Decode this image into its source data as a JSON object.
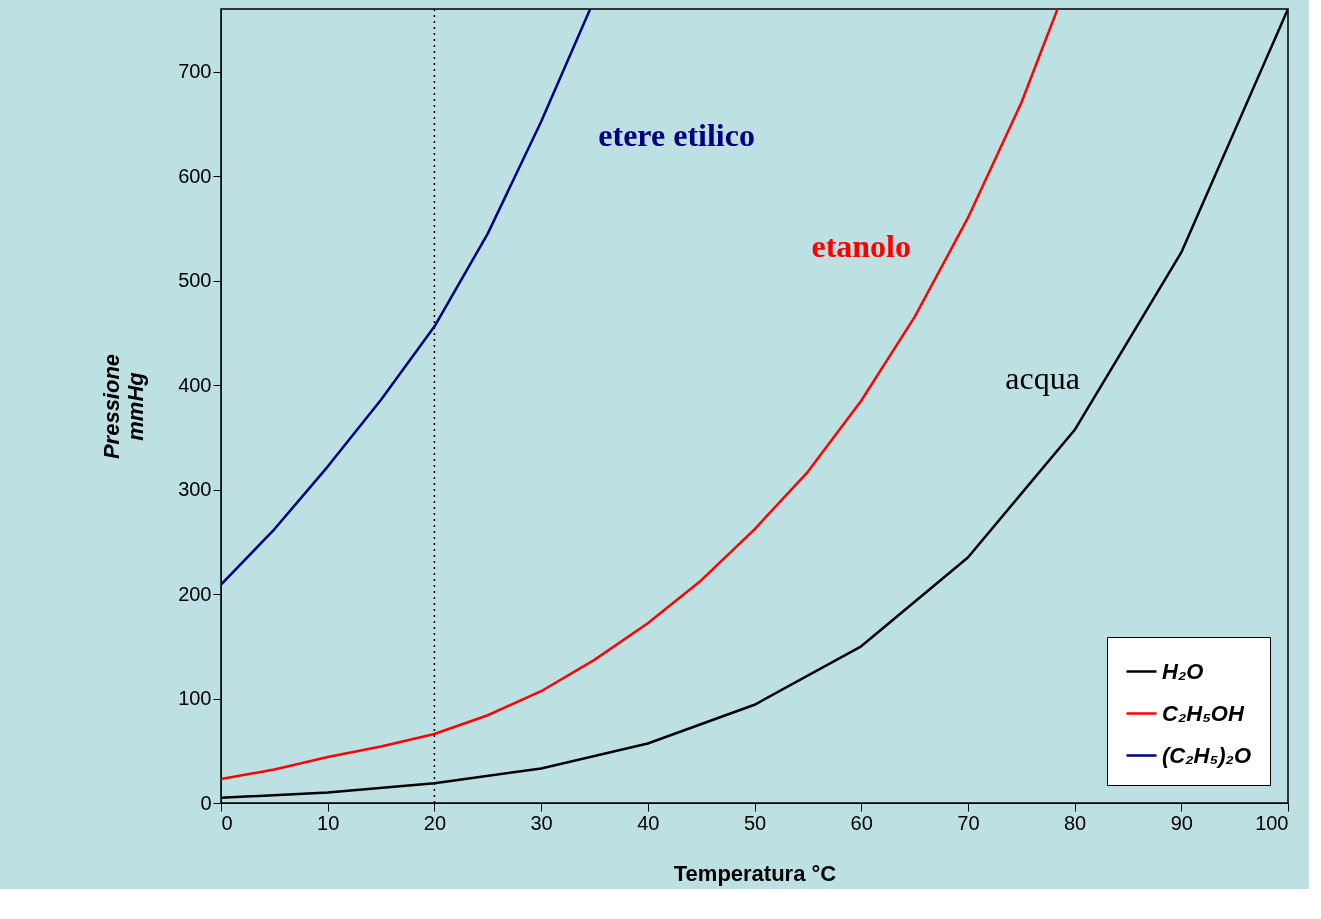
{
  "chart_data": {
    "type": "line",
    "xlabel": "Temperatura °C",
    "ylabel": "Pressione mmHg",
    "xlim": [
      0,
      100
    ],
    "xticks": [
      0,
      10,
      20,
      30,
      40,
      50,
      60,
      70,
      80,
      90,
      100
    ],
    "ylim": [
      0,
      760
    ],
    "yticks": [
      0,
      100,
      200,
      300,
      400,
      500,
      600,
      700
    ],
    "grid": false,
    "legend": "bottom right",
    "marker": "none",
    "line_style": "solid",
    "series": [
      {
        "name": "H₂O",
        "color": "#000000",
        "x": [
          0,
          10,
          20,
          30,
          40,
          50,
          60,
          70,
          80,
          90,
          100
        ],
        "values": [
          5,
          10,
          19,
          33,
          57,
          94,
          150,
          235,
          357,
          527,
          760
        ]
      },
      {
        "name": "C₂H₅OH",
        "color": "#ff0000",
        "x": [
          0,
          5,
          10,
          15,
          20,
          25,
          30,
          35,
          40,
          45,
          50,
          55,
          60,
          65,
          70,
          75,
          78.4
        ],
        "values": [
          23,
          32,
          44,
          54,
          66,
          84,
          107,
          137,
          172,
          213,
          262,
          317,
          385,
          465,
          560,
          670,
          760
        ]
      },
      {
        "name": "(C₂H₅)₂O",
        "color": "#000080",
        "x": [
          0,
          5,
          10,
          15,
          20,
          25,
          30,
          34.6
        ],
        "values": [
          209,
          262,
          322,
          386,
          456,
          545,
          652,
          760
        ]
      }
    ],
    "annotations": [
      "acqua",
      "etanolo",
      "etere etilico"
    ],
    "ref_lines": [
      {
        "axis": "x",
        "value": 20,
        "label": null,
        "line_style": "dotted",
        "color": "#000000"
      }
    ]
  }
}
